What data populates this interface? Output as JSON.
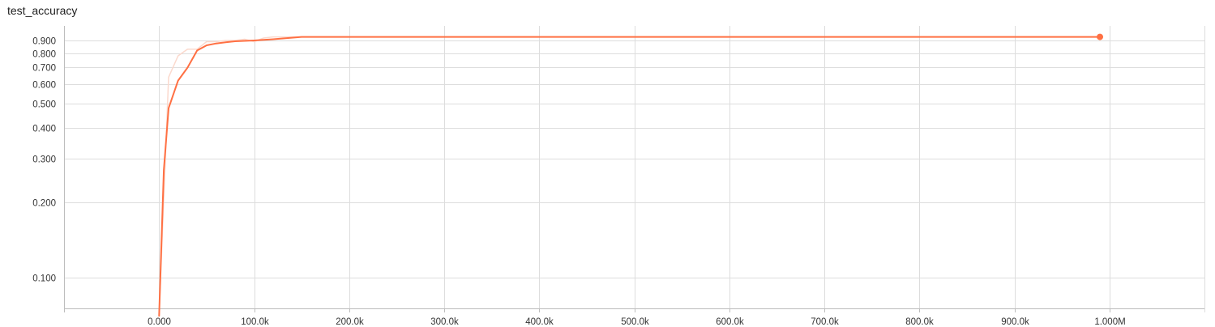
{
  "chart_data": {
    "type": "line",
    "title": "test_accuracy",
    "xlabel": "",
    "ylabel": "",
    "y_scale": "log",
    "x_ticks": [
      "0.000",
      "100.0k",
      "200.0k",
      "300.0k",
      "400.0k",
      "500.0k",
      "600.0k",
      "700.0k",
      "800.0k",
      "900.0k",
      "1.000M"
    ],
    "y_ticks": [
      "0.100",
      "0.200",
      "0.300",
      "0.400",
      "0.500",
      "0.600",
      "0.700",
      "0.800",
      "0.900"
    ],
    "xlim": [
      -100000,
      1100000
    ],
    "ylim": [
      0.075,
      1.03
    ],
    "grid": true,
    "series": [
      {
        "style": "raw",
        "color": "#fbd9cd",
        "x": [
          0,
          10000,
          20000,
          30000,
          40000,
          50000,
          60000,
          70000,
          80000,
          90000,
          100000,
          110000,
          120000,
          150000,
          200000,
          300000,
          400000,
          500000,
          600000,
          700000,
          800000,
          900000,
          990000
        ],
        "y": [
          0.07,
          0.64,
          0.78,
          0.83,
          0.83,
          0.89,
          0.89,
          0.9,
          0.9,
          0.91,
          0.89,
          0.92,
          0.93,
          0.93,
          0.93,
          0.93,
          0.93,
          0.93,
          0.93,
          0.93,
          0.93,
          0.93,
          0.93
        ]
      },
      {
        "style": "smoothed",
        "color": "#ff7043",
        "x": [
          0,
          5000,
          10000,
          20000,
          30000,
          40000,
          50000,
          60000,
          70000,
          80000,
          100000,
          120000,
          150000,
          200000,
          300000,
          400000,
          500000,
          600000,
          700000,
          800000,
          900000,
          990000
        ],
        "y": [
          0.07,
          0.27,
          0.48,
          0.62,
          0.7,
          0.82,
          0.86,
          0.875,
          0.885,
          0.893,
          0.9,
          0.91,
          0.93,
          0.93,
          0.93,
          0.93,
          0.93,
          0.93,
          0.93,
          0.93,
          0.93,
          0.93
        ]
      }
    ],
    "last_point": {
      "x": 990000,
      "y": 0.93,
      "color": "#ff7043"
    }
  }
}
